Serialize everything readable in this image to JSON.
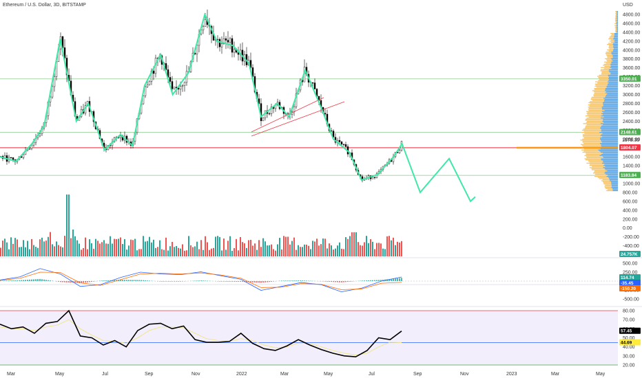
{
  "title": "Ethereum / U.S. Dollar, 3D, BITSTAMP",
  "currency": "USD",
  "colors": {
    "up": "#26a69a",
    "down": "#ef5350",
    "projection": "#3ee8a6",
    "horizontal_level": "#4caf50",
    "red_level": "#f23645",
    "channel": "#f23645",
    "vp_up": "#5aa3e0",
    "vp_down": "#f5c469",
    "macd_line": "#2962ff",
    "signal_line": "#ff6d00",
    "rsi_line": "#000000",
    "rsi_ma": "#f0e68c",
    "rsi_band": "#f3eefb"
  },
  "badges": {
    "level_3350": "3350.01",
    "level_2148": "2148.61",
    "level_1804": "1804.07",
    "level_1183": "1183.84",
    "volume": "24.757K",
    "macd_1": "114.74",
    "macd_2": "-35.45",
    "macd_3": "-150.20",
    "rsi_1": "57.45",
    "rsi_2": "44.69",
    "last_price": "1878.30"
  },
  "chart_data": [
    {
      "type": "candlestick",
      "title": "Ethereum / U.S. Dollar, 3D, BITSTAMP",
      "x_ticks": [
        "Mar",
        "May",
        "Jul",
        "Sep",
        "Nov",
        "2022",
        "Mar",
        "May",
        "Jul",
        "Sep",
        "Nov",
        "2023",
        "Mar",
        "May"
      ],
      "y_ticks": [
        4800,
        4600,
        4400,
        4200,
        4000,
        3800,
        3600,
        3400,
        3200,
        3000,
        2800,
        2600,
        2400,
        2200,
        2000,
        1800,
        1600,
        1400,
        1200,
        1000,
        800,
        600,
        400,
        200,
        0,
        -200,
        -400
      ],
      "y_tick_labels": [
        "4800.00",
        "4600.00",
        "4400.00",
        "4200.00",
        "4000.00",
        "3800.00",
        "3600.00",
        "3400.00",
        "3200.00",
        "3000.00",
        "2800.00",
        "2600.00",
        "2400.00",
        "2200.00",
        "2000.00",
        "1800.00",
        "1600.00",
        "1400.00",
        "1200.00",
        "1000.00",
        "800.00",
        "600.00",
        "400.00",
        "200.00",
        "0.00",
        "-200.00",
        "-400.00"
      ],
      "ylim": [
        -480,
        4900
      ],
      "horizontal_levels": [
        3350.01,
        2148.61,
        1804.07,
        1183.84
      ],
      "price_path": [
        {
          "t": 0,
          "close": 1600
        },
        {
          "t": 4,
          "close": 1500
        },
        {
          "t": 8,
          "close": 1900
        },
        {
          "t": 11,
          "close": 2300
        },
        {
          "t": 15,
          "close": 4250
        },
        {
          "t": 19,
          "close": 2400
        },
        {
          "t": 22,
          "close": 2800
        },
        {
          "t": 26,
          "close": 1750
        },
        {
          "t": 30,
          "close": 2100
        },
        {
          "t": 33,
          "close": 1850
        },
        {
          "t": 36,
          "close": 3200
        },
        {
          "t": 40,
          "close": 3900
        },
        {
          "t": 43,
          "close": 3000
        },
        {
          "t": 47,
          "close": 3500
        },
        {
          "t": 51,
          "close": 4800
        },
        {
          "t": 54,
          "close": 4200
        },
        {
          "t": 58,
          "close": 4100
        },
        {
          "t": 62,
          "close": 3700
        },
        {
          "t": 65,
          "close": 2500
        },
        {
          "t": 69,
          "close": 2800
        },
        {
          "t": 72,
          "close": 2500
        },
        {
          "t": 76,
          "close": 3550
        },
        {
          "t": 80,
          "close": 2700
        },
        {
          "t": 83,
          "close": 2000
        },
        {
          "t": 87,
          "close": 1700
        },
        {
          "t": 90,
          "close": 1080
        },
        {
          "t": 94,
          "close": 1200
        },
        {
          "t": 98,
          "close": 1600
        },
        {
          "t": 100,
          "close": 1880
        }
      ],
      "projection": [
        {
          "label": "start",
          "value": 1920
        },
        {
          "label": "low1",
          "value": 800
        },
        {
          "label": "high",
          "value": 1560
        },
        {
          "label": "low2",
          "value": 600
        },
        {
          "label": "end",
          "value": 700
        }
      ],
      "volume_profile": "right-side horizontal histogram, blue up / yellow down, peak near 1800"
    },
    {
      "type": "bar",
      "title": "",
      "series": [
        {
          "values": "volume histogram; tallest spike near May 2021, second near Jun 2022",
          "colors": [
            "#26a69a",
            "#ef5350"
          ]
        }
      ]
    },
    {
      "type": "line",
      "title": "",
      "y_ticks": [
        500,
        250,
        0,
        -250,
        -500
      ],
      "y_tick_labels": [
        "500.00",
        "250.00",
        "0.00",
        "-250.00",
        "-500.00"
      ],
      "series": [
        {
          "values": [
            30,
            120,
            350,
            200,
            -150,
            -100,
            100,
            250,
            200,
            180,
            260,
            150,
            50,
            -260,
            -150,
            -40,
            -100,
            -300,
            -200,
            0,
            114.74
          ]
        },
        {
          "values": [
            20,
            80,
            250,
            240,
            -50,
            -120,
            40,
            200,
            220,
            200,
            230,
            170,
            80,
            -180,
            -170,
            -70,
            -90,
            -240,
            -220,
            -60,
            -35.45
          ]
        }
      ]
    },
    {
      "type": "line",
      "title": "",
      "y_ticks": [
        80,
        70,
        60,
        50,
        40,
        30,
        20
      ],
      "y_tick_labels": [
        "80.00",
        "70.00",
        "60.00",
        "50.00",
        "40.00",
        "30.00",
        "20.00"
      ],
      "ylim": [
        17,
        84
      ],
      "band": [
        30,
        70
      ],
      "series": [
        {
          "values": [
            65,
            60,
            62,
            55,
            66,
            68,
            80,
            52,
            50,
            42,
            47,
            40,
            58,
            65,
            66,
            60,
            63,
            48,
            45,
            45,
            46,
            55,
            44,
            38,
            36,
            41,
            48,
            42,
            37,
            33,
            30,
            29,
            36,
            50,
            48,
            57.45
          ]
        },
        {
          "values": [
            62,
            60,
            60,
            58,
            62,
            64,
            70,
            60,
            53,
            47,
            46,
            44,
            50,
            58,
            62,
            62,
            61,
            55,
            49,
            47,
            46,
            49,
            47,
            42,
            39,
            40,
            44,
            44,
            40,
            36,
            33,
            31,
            33,
            40,
            45,
            44.69
          ]
        }
      ]
    }
  ]
}
